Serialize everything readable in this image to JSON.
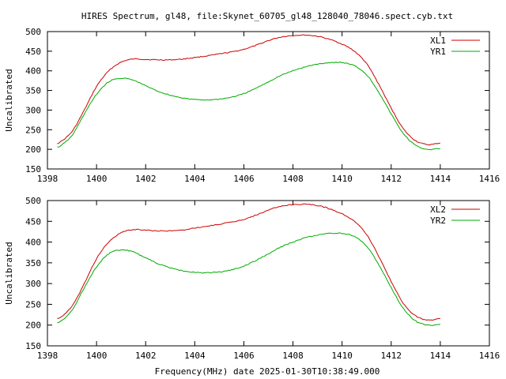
{
  "title": "HIRES Spectrum, gl48, file:Skynet_60705_gl48_128040_78046.spect.cyb.txt",
  "footer_xlabel": "Frequency(MHz) date 2025-01-30T10:38:49.000",
  "colors": {
    "red": "#cc0000",
    "green": "#00aa00",
    "axis": "#000000"
  },
  "chart_data": [
    {
      "type": "line",
      "xlabel": "",
      "ylabel": "Uncalibrated",
      "xlim": [
        1398,
        1416
      ],
      "ylim": [
        150,
        500
      ],
      "xticks": [
        1398,
        1400,
        1402,
        1404,
        1406,
        1408,
        1410,
        1412,
        1414,
        1416
      ],
      "yticks": [
        150,
        200,
        250,
        300,
        350,
        400,
        450,
        500
      ],
      "grid": false,
      "legend": "top-right",
      "series": [
        {
          "name": "XL1",
          "color": "#cc0000",
          "x": [
            1398.4,
            1399.0,
            1399.5,
            1400.0,
            1400.5,
            1401.0,
            1401.5,
            1402.0,
            1402.5,
            1403.0,
            1403.5,
            1404.0,
            1404.5,
            1405.0,
            1405.5,
            1406.0,
            1406.5,
            1407.0,
            1407.5,
            1408.0,
            1408.5,
            1409.0,
            1409.5,
            1410.0,
            1410.5,
            1411.0,
            1411.5,
            1412.0,
            1412.5,
            1413.0,
            1413.5,
            1414.0
          ],
          "y": [
            215,
            245,
            300,
            360,
            400,
            422,
            430,
            429,
            428,
            428,
            430,
            434,
            438,
            443,
            448,
            455,
            465,
            477,
            486,
            490,
            491,
            488,
            480,
            468,
            450,
            418,
            365,
            305,
            252,
            222,
            212,
            216
          ]
        },
        {
          "name": "YR1",
          "color": "#00aa00",
          "x": [
            1398.4,
            1399.0,
            1399.5,
            1400.0,
            1400.5,
            1401.0,
            1401.5,
            1402.0,
            1402.5,
            1403.0,
            1403.5,
            1404.0,
            1404.5,
            1405.0,
            1405.5,
            1406.0,
            1406.5,
            1407.0,
            1407.5,
            1408.0,
            1408.5,
            1409.0,
            1409.5,
            1410.0,
            1410.5,
            1411.0,
            1411.5,
            1412.0,
            1412.5,
            1413.0,
            1413.5,
            1414.0
          ],
          "y": [
            205,
            235,
            290,
            340,
            372,
            381,
            376,
            362,
            348,
            338,
            331,
            327,
            326,
            328,
            333,
            342,
            356,
            372,
            388,
            400,
            410,
            417,
            421,
            421,
            413,
            390,
            345,
            290,
            240,
            210,
            200,
            202
          ]
        }
      ]
    },
    {
      "type": "line",
      "xlabel": "Frequency(MHz) date 2025-01-30T10:38:49.000",
      "ylabel": "Uncalibrated",
      "xlim": [
        1398,
        1416
      ],
      "ylim": [
        150,
        500
      ],
      "xticks": [
        1398,
        1400,
        1402,
        1404,
        1406,
        1408,
        1410,
        1412,
        1414,
        1416
      ],
      "yticks": [
        150,
        200,
        250,
        300,
        350,
        400,
        450,
        500
      ],
      "grid": false,
      "legend": "top-right",
      "series": [
        {
          "name": "XL2",
          "color": "#cc0000",
          "x": [
            1398.4,
            1399.0,
            1399.5,
            1400.0,
            1400.5,
            1401.0,
            1401.5,
            1402.0,
            1402.5,
            1403.0,
            1403.5,
            1404.0,
            1404.5,
            1405.0,
            1405.5,
            1406.0,
            1406.5,
            1407.0,
            1407.5,
            1408.0,
            1408.5,
            1409.0,
            1409.5,
            1410.0,
            1410.5,
            1411.0,
            1411.5,
            1412.0,
            1412.5,
            1413.0,
            1413.5,
            1414.0
          ],
          "y": [
            215,
            245,
            300,
            360,
            400,
            422,
            430,
            429,
            427,
            427,
            429,
            434,
            438,
            443,
            448,
            455,
            465,
            477,
            486,
            490,
            491,
            488,
            480,
            468,
            450,
            418,
            365,
            305,
            252,
            222,
            212,
            216
          ]
        },
        {
          "name": "YR2",
          "color": "#00aa00",
          "x": [
            1398.4,
            1399.0,
            1399.5,
            1400.0,
            1400.5,
            1401.0,
            1401.5,
            1402.0,
            1402.5,
            1403.0,
            1403.5,
            1404.0,
            1404.5,
            1405.0,
            1405.5,
            1406.0,
            1406.5,
            1407.0,
            1407.5,
            1408.0,
            1408.5,
            1409.0,
            1409.5,
            1410.0,
            1410.5,
            1411.0,
            1411.5,
            1412.0,
            1412.5,
            1413.0,
            1413.5,
            1414.0
          ],
          "y": [
            205,
            235,
            290,
            340,
            372,
            381,
            376,
            362,
            348,
            338,
            331,
            327,
            326,
            328,
            333,
            342,
            356,
            372,
            388,
            400,
            410,
            417,
            421,
            421,
            413,
            390,
            345,
            290,
            240,
            210,
            200,
            202
          ]
        }
      ]
    }
  ]
}
